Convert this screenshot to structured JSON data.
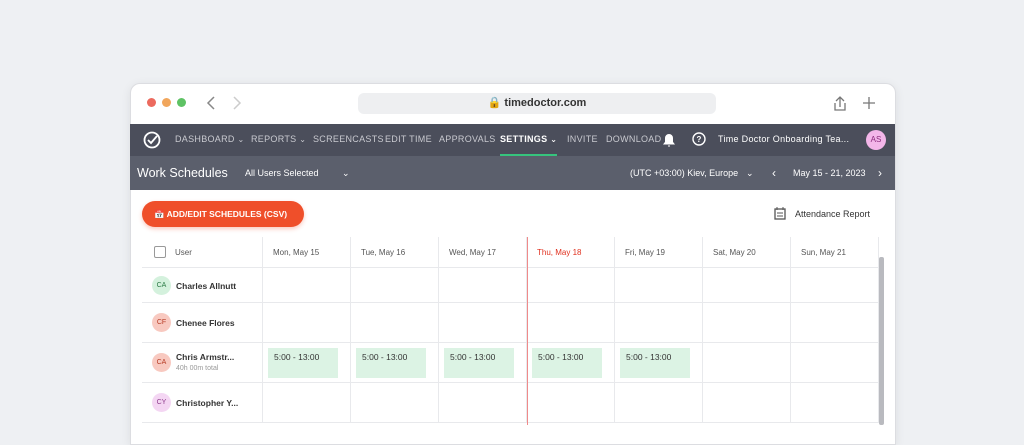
{
  "browser": {
    "url": "timedoctor.com"
  },
  "nav": {
    "items": [
      "DASHBOARD",
      "REPORTS",
      "SCREENCASTS",
      "EDIT TIME",
      "APPROVALS",
      "SETTINGS",
      "INVITE",
      "DOWNLOAD"
    ],
    "account": "Time Doctor Onboarding Tea...",
    "avatar": "AS"
  },
  "subheader": {
    "title": "Work Schedules",
    "filter": "All Users Selected",
    "timezone": "(UTC +03:00) Kiev, Europe",
    "range": "May 15 - 21, 2023"
  },
  "toolbar": {
    "button": "ADD/EDIT SCHEDULES (CSV)",
    "report": "Attendance Report"
  },
  "table": {
    "header": {
      "user": "User",
      "days": [
        "Mon, May 15",
        "Tue, May 16",
        "Wed, May 17",
        "Thu, May 18",
        "Fri, May 19",
        "Sat, May 20",
        "Sun, May 21"
      ]
    },
    "rows": [
      {
        "initials": "CA",
        "name": "Charles Allnutt",
        "shifts": [
          null,
          null,
          null,
          null,
          null,
          null,
          null
        ]
      },
      {
        "initials": "CF",
        "name": "Chenee Flores",
        "shifts": [
          null,
          null,
          null,
          null,
          null,
          null,
          null
        ]
      },
      {
        "initials": "CA",
        "name": "Chris Armstr...",
        "total": "40h 00m total",
        "shifts": [
          "5:00 - 13:00",
          "5:00 - 13:00",
          "5:00 - 13:00",
          "5:00 - 13:00",
          "5:00 - 13:00",
          null,
          null
        ]
      },
      {
        "initials": "CY",
        "name": "Christopher Y...",
        "shifts": [
          null,
          null,
          null,
          null,
          null,
          null,
          null
        ]
      }
    ]
  }
}
